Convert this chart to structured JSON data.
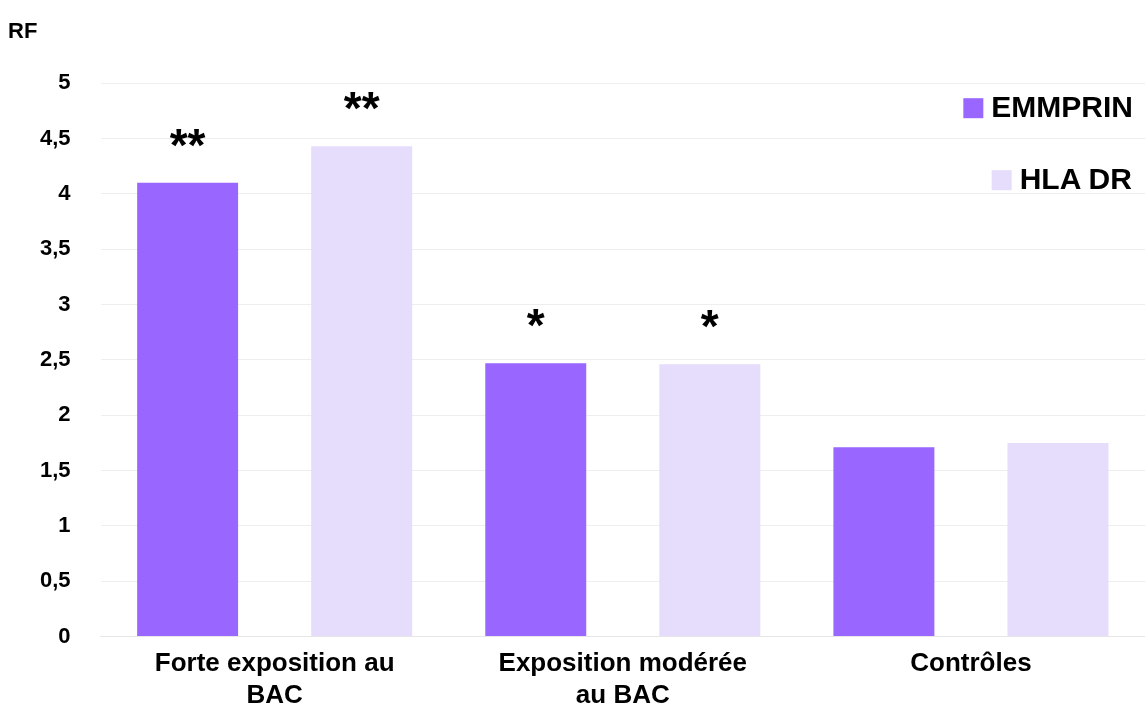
{
  "chart_data": {
    "type": "bar",
    "ylabel": "RF",
    "categories": [
      "Forte exposition au BAC",
      "Exposition modérée au BAC",
      "Contrôles"
    ],
    "series": [
      {
        "name": "EMMPRIN",
        "color": "#9966ff",
        "values": [
          4.1,
          2.47,
          1.71
        ]
      },
      {
        "name": "HLA DR",
        "color": "#e6dcfc",
        "values": [
          4.43,
          2.46,
          1.75
        ]
      }
    ],
    "ylim": [
      0,
      5
    ],
    "yticks": [
      0,
      {
        "value": 0.5,
        "label": "0,5"
      },
      1,
      {
        "value": 1.5,
        "label": "1,5"
      },
      2,
      {
        "value": 2.5,
        "label": "2,5"
      },
      3,
      {
        "value": 3.5,
        "label": "3,5"
      },
      4,
      {
        "value": 4.5,
        "label": "4,5"
      },
      5
    ],
    "grid": "y",
    "legend": "top right",
    "annotations": [
      "**",
      "**",
      "*",
      "*"
    ]
  }
}
